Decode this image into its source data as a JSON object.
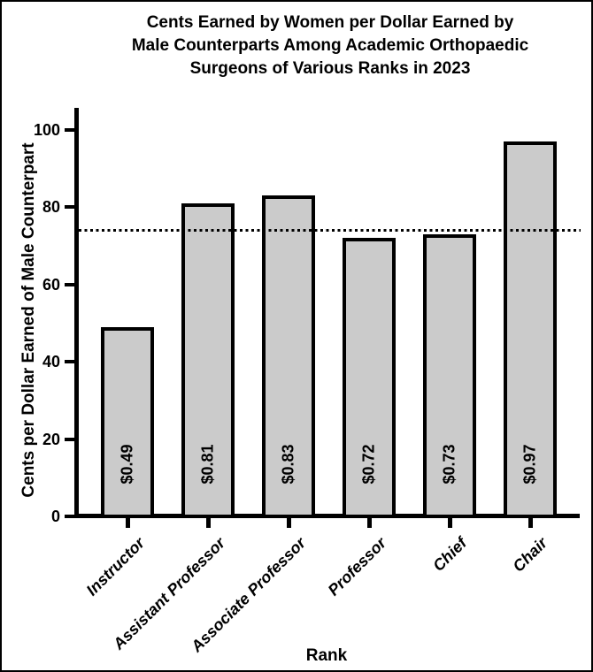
{
  "figure": {
    "background_color": "#ffffff",
    "border_color": "#000000",
    "text_color": "#000000"
  },
  "chart_data": {
    "type": "bar",
    "title": "Cents Earned by Women per Dollar Earned by Male Counterparts Among Academic Orthopaedic Surgeons of Various Ranks in 2023",
    "title_lines": [
      "Cents Earned by Women per Dollar Earned by",
      "Male Counterparts Among Academic Orthopaedic",
      "Surgeons of Various Ranks in 2023"
    ],
    "xlabel": "Rank",
    "ylabel": "Cents per Dollar Earned of Male Counterpart",
    "categories": [
      "Instructor",
      "Assistant Professor",
      "Associate Professor",
      "Professor",
      "Chief",
      "Chair"
    ],
    "values": [
      49,
      81,
      83,
      72,
      73,
      97
    ],
    "bar_labels": [
      "$0.49",
      "$0.81",
      "$0.83",
      "$0.72",
      "$0.73",
      "$0.97"
    ],
    "ylim": [
      0,
      105
    ],
    "yticks": [
      0,
      20,
      40,
      60,
      80,
      100
    ],
    "reference_line_value": 74,
    "reference_line_style": "dotted",
    "grid": false,
    "legend": false,
    "bar_fill_color": "#cbcbcb",
    "bar_border_color": "#000000"
  }
}
